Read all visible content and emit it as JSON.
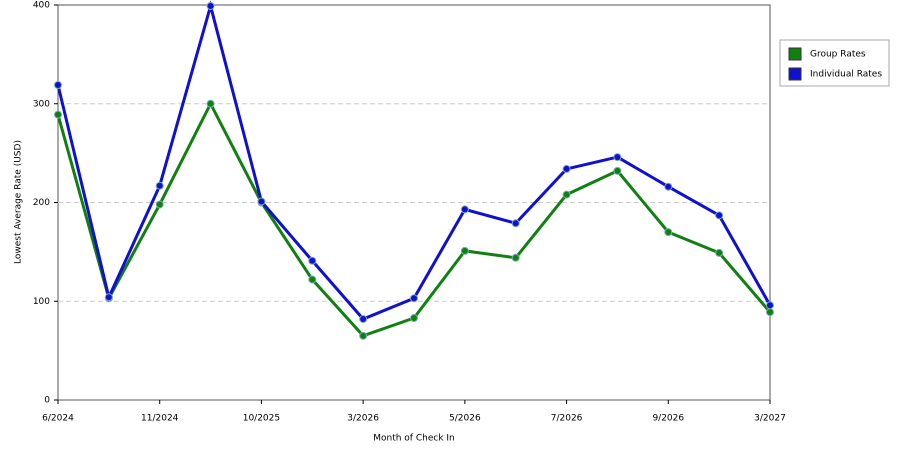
{
  "chart_data": {
    "type": "line",
    "x_label": "Month of Check In",
    "y_label": "Lowest Average Rate (USD)",
    "categories": [
      "6/2024",
      null,
      "11/2024",
      null,
      "10/2025",
      null,
      "3/2026",
      null,
      "5/2026",
      null,
      "7/2026",
      null,
      "9/2026",
      null,
      "3/2027"
    ],
    "series": [
      {
        "name": "Group Rates",
        "color": "#108010",
        "values": [
          289,
          103,
          198,
          300,
          200,
          122,
          65,
          83,
          151,
          144,
          208,
          232,
          170,
          149,
          89
        ]
      },
      {
        "name": "Individual Rates",
        "color": "#1010d0",
        "values": [
          319,
          104,
          217,
          399,
          201,
          141,
          82,
          103,
          193,
          179,
          234,
          246,
          216,
          187,
          96
        ]
      }
    ],
    "ylim": [
      0,
      400
    ],
    "yticks": [
      0,
      100,
      200,
      300,
      400
    ],
    "grid": true,
    "legend": "right"
  }
}
